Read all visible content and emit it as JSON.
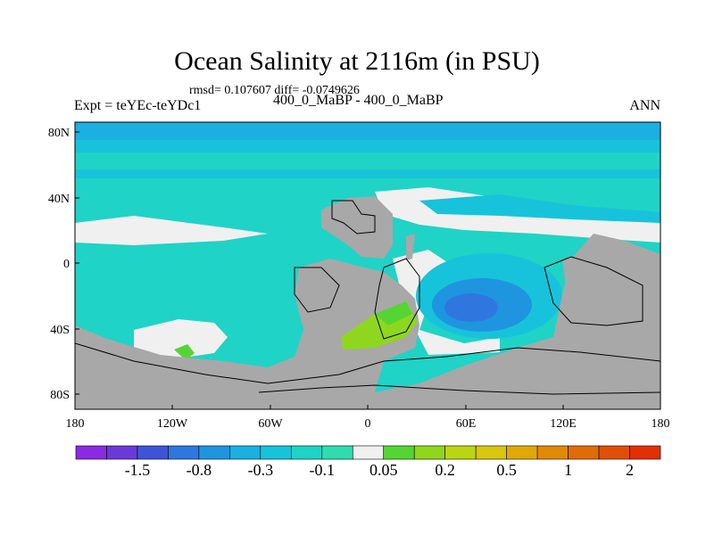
{
  "title": "Ocean Salinity at 2116m (in PSU)",
  "stats": "rmsd= 0.107607 diff= -0.0749626",
  "expt": "Expt = teYEc-teYDc1",
  "period": "400_0_MaBP - 400_0_MaBP",
  "season": "ANN",
  "lon_labels": [
    "180",
    "120W",
    "60W",
    "0",
    "60E",
    "120E",
    "180"
  ],
  "lat_labels": [
    "80N",
    "40N",
    "0",
    "40S",
    "80S"
  ],
  "colorbar": {
    "colors": [
      "#8a2be2",
      "#6a3ad8",
      "#3e54d6",
      "#2f77df",
      "#1f95df",
      "#1ab0e2",
      "#17c3da",
      "#1fd3c6",
      "#2fdcae",
      "#f0f0f0",
      "#55d534",
      "#8fd71e",
      "#bcd512",
      "#d8c610",
      "#e0a808",
      "#e08a06",
      "#e06c06",
      "#e05006",
      "#e03006"
    ],
    "labels": [
      "-1.5",
      "-0.8",
      "-0.3",
      "-0.1",
      "0.05",
      "0.2",
      "0.5",
      "1",
      "2"
    ]
  },
  "palette": {
    "ocean_main": "#1fd3c6",
    "ocean_north": "#1ab0e2",
    "near_zero": "#f0f0f0",
    "land": "#a8a8a8",
    "positive": "#8fd71e",
    "deep_negative": "#2f77df"
  }
}
